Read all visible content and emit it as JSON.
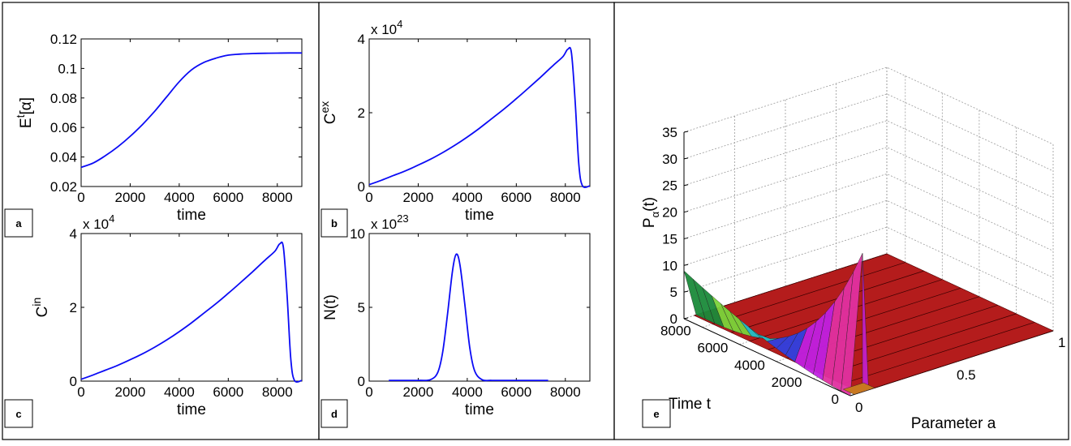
{
  "colors": {
    "line": "#0b0bf5",
    "border": "#000000"
  },
  "panels": {
    "a": {
      "label": "a"
    },
    "b": {
      "label": "b"
    },
    "c": {
      "label": "c"
    },
    "d": {
      "label": "d"
    },
    "e": {
      "label": "e"
    }
  },
  "chart_data": [
    {
      "id": "a",
      "type": "line",
      "xlabel": "time",
      "ylabel_main": "E",
      "ylabel_sup": "t",
      "ylabel_tail": "[α]",
      "exponent_label": "",
      "xlim": [
        0,
        9000
      ],
      "ylim": [
        0.02,
        0.12
      ],
      "xticks": [
        0,
        2000,
        4000,
        6000,
        8000
      ],
      "yticks": [
        0.02,
        0.04,
        0.06,
        0.08,
        0.1,
        0.12
      ],
      "ytick_labels": [
        "0.02",
        "0.04",
        "0.06",
        "0.08",
        "0.1",
        "0.12"
      ],
      "series": [
        {
          "x": [
            0,
            500,
            1000,
            1500,
            2000,
            2500,
            3000,
            3500,
            4000,
            4500,
            5000,
            5500,
            6000,
            6500,
            7000,
            7500,
            8000,
            8500,
            9000
          ],
          "y": [
            0.033,
            0.036,
            0.041,
            0.047,
            0.054,
            0.062,
            0.071,
            0.081,
            0.091,
            0.099,
            0.104,
            0.107,
            0.109,
            0.1097,
            0.1101,
            0.1103,
            0.1104,
            0.1105,
            0.1105
          ]
        }
      ]
    },
    {
      "id": "b",
      "type": "line",
      "xlabel": "time",
      "ylabel_main": "C",
      "ylabel_sup": "ex",
      "ylabel_tail": "",
      "exponent_label": "x 10",
      "exponent_power": "4",
      "xlim": [
        0,
        9000
      ],
      "ylim": [
        0,
        4
      ],
      "xticks": [
        0,
        2000,
        4000,
        6000,
        8000
      ],
      "yticks": [
        0,
        2,
        4
      ],
      "ytick_labels": [
        "0",
        "2",
        "4"
      ],
      "series": [
        {
          "x": [
            0,
            500,
            1000,
            1500,
            2000,
            2500,
            3000,
            3500,
            4000,
            4500,
            5000,
            5500,
            6000,
            6500,
            7000,
            7500,
            7900,
            8100,
            8250,
            8400,
            8550,
            8700,
            9000
          ],
          "y": [
            0.05,
            0.17,
            0.3,
            0.43,
            0.58,
            0.74,
            0.92,
            1.12,
            1.34,
            1.58,
            1.84,
            2.1,
            2.38,
            2.67,
            2.97,
            3.28,
            3.52,
            3.72,
            3.62,
            2.3,
            0.6,
            0.02,
            0.02
          ]
        }
      ]
    },
    {
      "id": "c",
      "type": "line",
      "xlabel": "time",
      "ylabel_main": "C",
      "ylabel_sup": "in",
      "ylabel_tail": "",
      "exponent_label": "x 10",
      "exponent_power": "4",
      "xlim": [
        0,
        9000
      ],
      "ylim": [
        0,
        4
      ],
      "xticks": [
        0,
        2000,
        4000,
        6000,
        8000
      ],
      "yticks": [
        0,
        2,
        4
      ],
      "ytick_labels": [
        "0",
        "2",
        "4"
      ],
      "series": [
        {
          "x": [
            0,
            500,
            1000,
            1500,
            2000,
            2500,
            3000,
            3500,
            4000,
            4500,
            5000,
            5500,
            6000,
            6500,
            7000,
            7500,
            7900,
            8100,
            8250,
            8400,
            8550,
            8700,
            9000
          ],
          "y": [
            0.05,
            0.17,
            0.3,
            0.43,
            0.58,
            0.74,
            0.92,
            1.12,
            1.34,
            1.58,
            1.84,
            2.1,
            2.38,
            2.67,
            2.97,
            3.28,
            3.52,
            3.72,
            3.62,
            2.3,
            0.6,
            0.02,
            0.02
          ]
        }
      ]
    },
    {
      "id": "d",
      "type": "line",
      "xlabel": "time",
      "ylabel_main": "N(t)",
      "ylabel_sup": "",
      "ylabel_tail": "",
      "exponent_label": "x 10",
      "exponent_power": "23",
      "xlim": [
        0,
        9000
      ],
      "ylim": [
        0,
        10
      ],
      "xticks": [
        0,
        2000,
        4000,
        6000,
        8000
      ],
      "yticks": [
        0,
        5,
        10
      ],
      "ytick_labels": [
        "0",
        "5",
        "10"
      ],
      "series": [
        {
          "x": [
            800,
            2000,
            2500,
            2800,
            3000,
            3200,
            3400,
            3550,
            3700,
            3900,
            4100,
            4300,
            4600,
            5000,
            6000,
            7300
          ],
          "y": [
            0.05,
            0.05,
            0.1,
            0.6,
            2.0,
            4.6,
            7.5,
            8.6,
            7.9,
            5.2,
            2.3,
            0.7,
            0.1,
            0.05,
            0.05,
            0.05
          ]
        }
      ]
    },
    {
      "id": "e",
      "type": "surface",
      "zlabel_main": "P",
      "zlabel_sub": "α",
      "zlabel_tail": "(t)",
      "xlabel": "Parameter a",
      "ylabel": "Time t",
      "zticks": [
        "0",
        "5",
        "10",
        "15",
        "20",
        "25",
        "30",
        "35"
      ],
      "yticks": [
        "0",
        "2000",
        "4000",
        "6000",
        "8000"
      ],
      "xticks": [
        "0",
        "0.5",
        "1"
      ],
      "xlim": [
        0,
        1
      ],
      "ylim": [
        0,
        9000
      ],
      "zlim": [
        0,
        35
      ],
      "surface_colors": [
        "#1a8a3a",
        "#7ad43a",
        "#20c0c8",
        "#3040e0",
        "#c020e0",
        "#e030a0",
        "#b01818"
      ]
    }
  ]
}
